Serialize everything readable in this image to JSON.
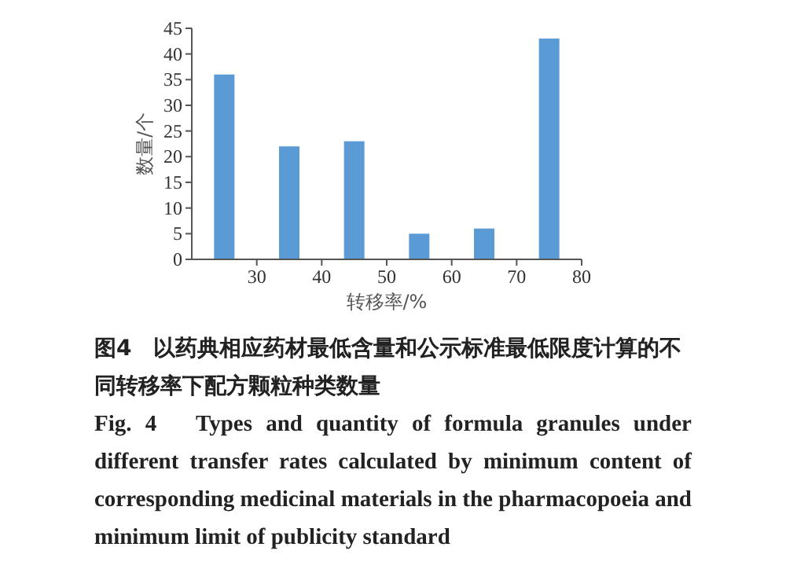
{
  "chart_data": {
    "type": "bar",
    "xlabel": "转移率/%",
    "ylabel": "数量/个",
    "x": [
      25,
      35,
      45,
      55,
      65,
      75
    ],
    "values": [
      36,
      22,
      23,
      5,
      6,
      43
    ],
    "color": "#5b9bd5",
    "xlim": [
      20,
      80
    ],
    "xticks": [
      30,
      40,
      50,
      60,
      70,
      80
    ],
    "ylim": [
      0,
      45
    ],
    "yticks": [
      0,
      5,
      10,
      15,
      20,
      25,
      30,
      35,
      40,
      45
    ],
    "annotations": [
      "图4　以药典相应药材最低含量和公示标准最低限度计算的不同转移率下配方颗粒种类数量",
      "Fig. 4　Types and quantity of formula granules under different transfer rates calculated by minimum content of corresponding medicinal materials in the pharmacopoeia and minimum limit of publicity standard"
    ]
  }
}
